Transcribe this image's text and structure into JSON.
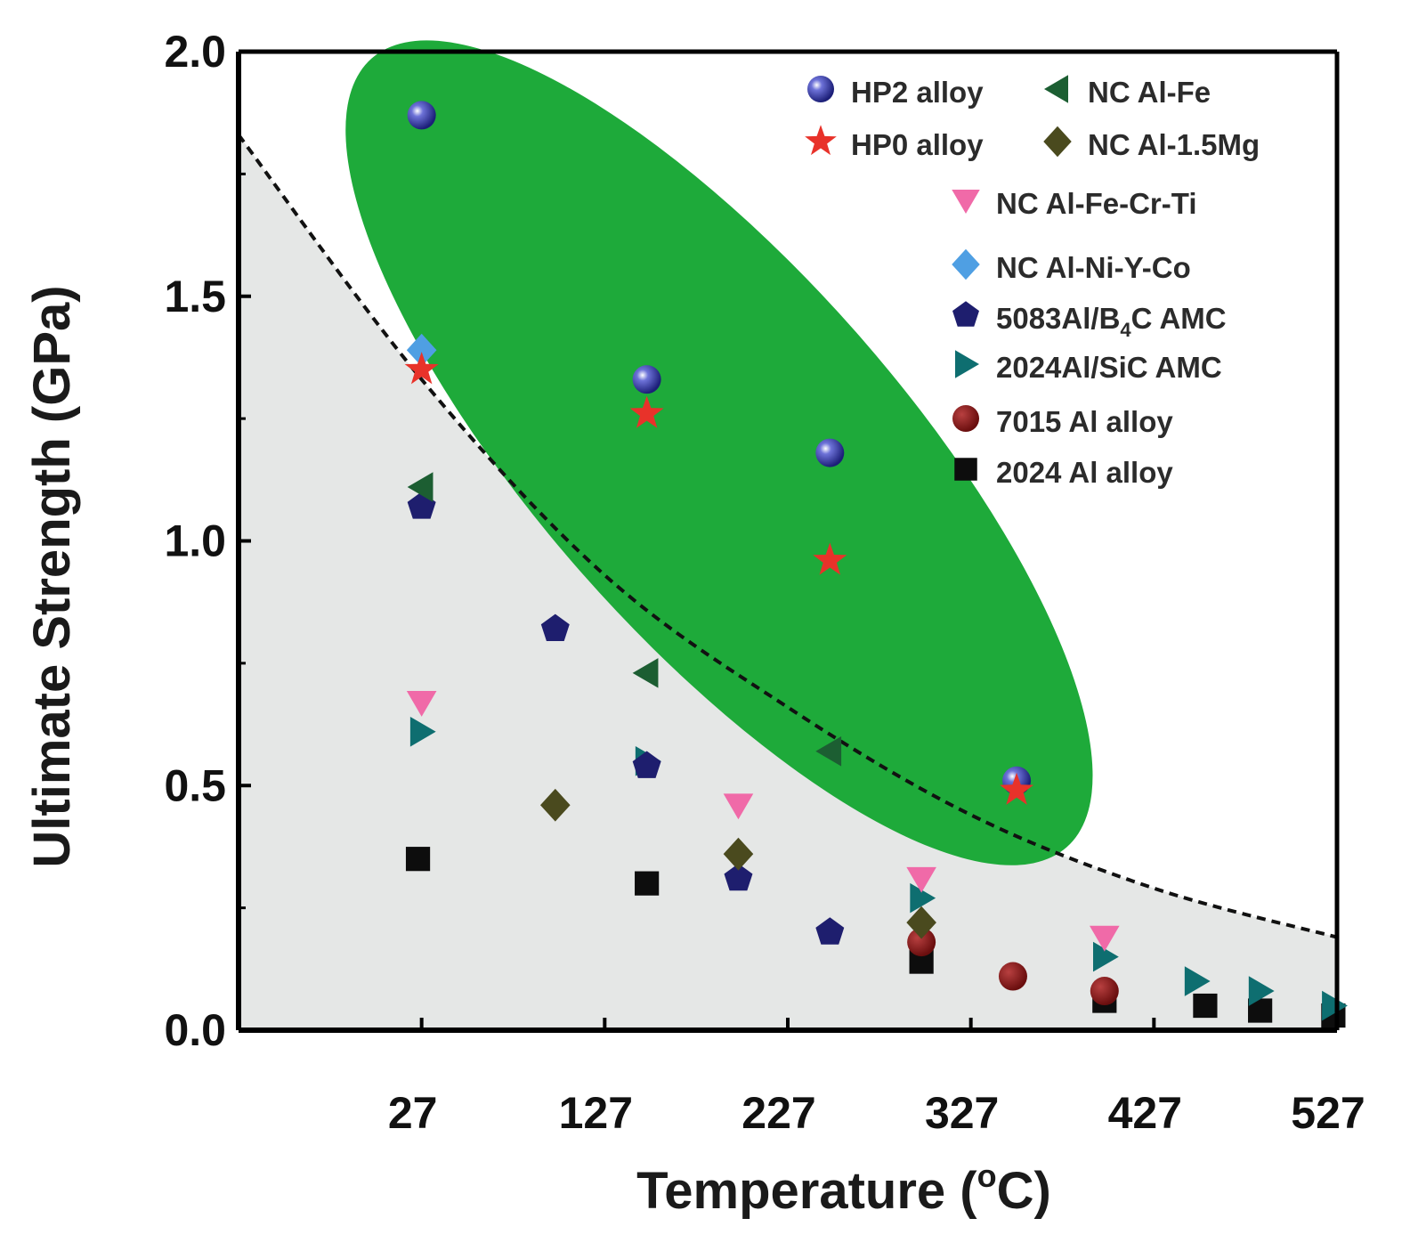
{
  "chart_data": {
    "type": "scatter",
    "title": "",
    "xlabel": "Temperature (°C)",
    "xlabel_parts": {
      "prefix": "Temperature (",
      "degree": "o",
      "suffix": "C)"
    },
    "ylabel": "Ultimate Strength (GPa)",
    "xlim": [
      -73,
      527
    ],
    "ylim": [
      0.0,
      2.0
    ],
    "x_ticks": [
      27,
      127,
      227,
      327,
      427,
      527
    ],
    "x_tick_labels": [
      "27",
      "127",
      "227",
      "327",
      "427",
      "527"
    ],
    "y_ticks": [
      0.0,
      0.5,
      1.0,
      1.5,
      2.0
    ],
    "y_tick_labels": [
      "0.0",
      "0.5",
      "1.0",
      "1.5",
      "2.0"
    ],
    "grid": false,
    "legend_position": "top-right",
    "background_region": {
      "description": "light grey region below dashed boundary curve",
      "color": "#e5e7e6"
    },
    "highlight_region": {
      "color": "#1eaa3a",
      "contains": [
        "HP2 alloy",
        "HP0 alloy"
      ]
    },
    "boundary_curve": {
      "style": "dashed",
      "color": "#111111",
      "x": [
        -73,
        27,
        127,
        227,
        327,
        427,
        527
      ],
      "y": [
        1.83,
        1.33,
        0.93,
        0.66,
        0.44,
        0.29,
        0.19
      ]
    },
    "series": [
      {
        "name": "HP2 alloy",
        "marker": "sphere",
        "color": "#2b2f9e",
        "x": [
          27,
          150,
          250,
          352
        ],
        "y": [
          1.87,
          1.33,
          1.18,
          0.51
        ]
      },
      {
        "name": "HP0 alloy",
        "marker": "star",
        "color": "#e8322a",
        "x": [
          27,
          150,
          250,
          352
        ],
        "y": [
          1.35,
          1.26,
          0.96,
          0.49
        ]
      },
      {
        "name": "NC Al-1.5Mg",
        "marker": "diamond",
        "color": "#4a4a1e",
        "x": [
          100,
          200,
          300
        ],
        "y": [
          0.46,
          0.36,
          0.22
        ]
      },
      {
        "name": "NC Al-Fe-Cr-Ti",
        "marker": "triangle-down",
        "color": "#f06aa8",
        "x": [
          27,
          200,
          300,
          400
        ],
        "y": [
          0.67,
          0.46,
          0.31,
          0.19
        ]
      },
      {
        "name": "NC Al-Ni-Y-Co",
        "marker": "diamond",
        "color": "#4f9fe3",
        "x": [
          27
        ],
        "y": [
          1.39
        ]
      },
      {
        "name": "5083Al/B4C AMC",
        "marker": "pentagon",
        "color": "#1e1e6e",
        "x": [
          27,
          100,
          150,
          200,
          250
        ],
        "y": [
          1.07,
          0.82,
          0.54,
          0.31,
          0.2
        ]
      },
      {
        "name": "NC Al-Fe",
        "marker": "triangle-left",
        "color": "#1c5e32",
        "x": [
          27,
          150,
          250
        ],
        "y": [
          1.11,
          0.73,
          0.57
        ]
      },
      {
        "name": "2024Al/SiC AMC",
        "marker": "triangle-right",
        "color": "#0e6e70",
        "x": [
          27,
          150,
          300,
          400,
          450,
          485,
          525
        ],
        "y": [
          0.61,
          0.55,
          0.27,
          0.15,
          0.1,
          0.08,
          0.05
        ]
      },
      {
        "name": "7015 Al alloy",
        "marker": "circle",
        "color": "#7a1212",
        "x": [
          300,
          350,
          400
        ],
        "y": [
          0.18,
          0.11,
          0.08
        ]
      },
      {
        "name": "2024 Al alloy",
        "marker": "square",
        "color": "#0d0d0d",
        "x": [
          25,
          150,
          300,
          400,
          455,
          485,
          525
        ],
        "y": [
          0.35,
          0.3,
          0.14,
          0.06,
          0.05,
          0.04,
          0.03
        ]
      }
    ],
    "legend_entries": [
      {
        "series": "HP2 alloy",
        "label": "HP2 alloy",
        "main": "HP2 alloy"
      },
      {
        "series": "NC Al-Fe",
        "label": "NC Al-Fe",
        "main": "NC Al-Fe"
      },
      {
        "series": "HP0 alloy",
        "label": "HP0 alloy",
        "main": "HP0 alloy"
      },
      {
        "series": "NC Al-1.5Mg",
        "label": "NC Al-1.5Mg",
        "main": "NC Al-1.5Mg"
      },
      {
        "series": "NC Al-Fe-Cr-Ti",
        "label": "NC Al-Fe-Cr-Ti",
        "main": "NC Al-Fe-Cr-Ti"
      },
      {
        "series": "NC Al-Ni-Y-Co",
        "label": "NC Al-Ni-Y-Co",
        "main": "NC Al-Ni-Y-Co"
      },
      {
        "series": "5083Al/B4C AMC",
        "label": "5083Al/B4C AMC",
        "main": "5083Al/B",
        "sub": "4",
        "tail": "C AMC"
      },
      {
        "series": "2024Al/SiC AMC",
        "label": "2024Al/SiC AMC",
        "main": "2024Al/SiC AMC"
      },
      {
        "series": "7015 Al alloy",
        "label": "7015 Al alloy",
        "main": "7015 Al alloy"
      },
      {
        "series": "2024 Al alloy",
        "label": "2024 Al alloy",
        "main": "2024 Al alloy"
      }
    ]
  }
}
